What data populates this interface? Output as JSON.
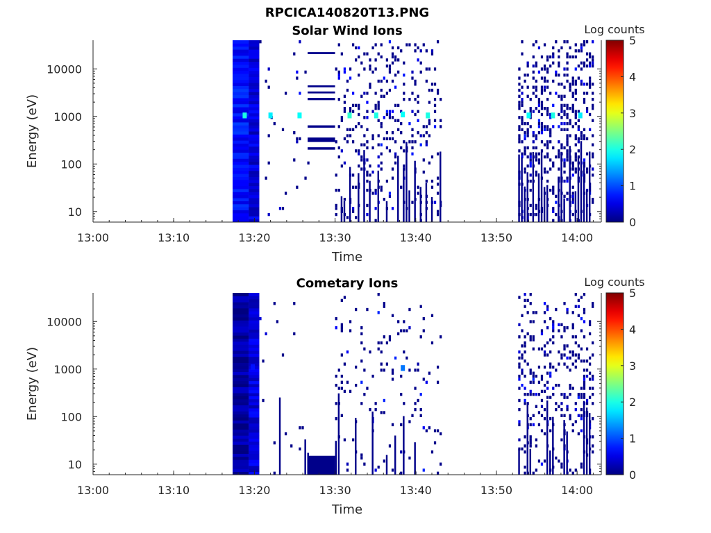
{
  "figure_title": "RPCICA140820T13.PNG",
  "chart_data": [
    {
      "type": "heatmap",
      "title": "Solar Wind Ions",
      "xlabel": "Time",
      "ylabel": "Energy (eV)",
      "x_tick_labels": [
        "13:00",
        "13:10",
        "13:20",
        "13:30",
        "13:40",
        "13:50",
        "14:00"
      ],
      "x_range_minutes": [
        0,
        63
      ],
      "y_tick_labels": [
        "10",
        "100",
        "1000",
        "10000"
      ],
      "y_scale": "log",
      "y_range": [
        6,
        40000
      ],
      "colorbar_label": "Log counts",
      "colorbar_ticks": [
        "0",
        "1",
        "2",
        "3",
        "4",
        "5"
      ],
      "colorbar_range": [
        0,
        5
      ],
      "colormap": "jet",
      "blocks": [
        {
          "t": [
            17.3,
            19.3
          ],
          "e": [
            6,
            40000
          ],
          "level": 0.7
        },
        {
          "t": [
            19.3,
            20.6
          ],
          "e": [
            6,
            40000
          ],
          "level": 0.45
        },
        {
          "t": [
            26.6,
            30.0
          ],
          "e": [
            20500,
            22500
          ],
          "level": 0.05
        },
        {
          "t": [
            26.6,
            30.0
          ],
          "e": [
            4100,
            4500
          ],
          "level": 0.05
        },
        {
          "t": [
            26.6,
            30.0
          ],
          "e": [
            3050,
            3350
          ],
          "level": 0.05
        },
        {
          "t": [
            26.6,
            30.0
          ],
          "e": [
            2200,
            2450
          ],
          "level": 0.05
        },
        {
          "t": [
            26.6,
            30.0
          ],
          "e": [
            580,
            650
          ],
          "level": 0.05
        },
        {
          "t": [
            26.6,
            30.0
          ],
          "e": [
            290,
            360
          ],
          "level": 0.05
        },
        {
          "t": [
            26.6,
            30.0
          ],
          "e": [
            200,
            225
          ],
          "level": 0.05
        }
      ],
      "peaks": [
        {
          "t": 18.8,
          "e": 1050,
          "level": 2.0
        },
        {
          "t": 22.0,
          "e": 1050,
          "level": 1.8
        },
        {
          "t": 25.6,
          "e": 1050,
          "level": 1.9
        },
        {
          "t": 31.8,
          "e": 1050,
          "level": 2.1
        },
        {
          "t": 35.1,
          "e": 1050,
          "level": 2.0
        },
        {
          "t": 38.4,
          "e": 1100,
          "level": 1.9
        },
        {
          "t": 41.5,
          "e": 1050,
          "level": 2.0
        },
        {
          "t": 54.0,
          "e": 1050,
          "level": 1.9
        },
        {
          "t": 57.0,
          "e": 1050,
          "level": 2.0
        },
        {
          "t": 60.4,
          "e": 1050,
          "level": 1.8
        }
      ],
      "sparse_regions": [
        {
          "t": [
            20.6,
            26.6
          ],
          "density": 0.025
        },
        {
          "t": [
            30.0,
            43.0
          ],
          "density": 0.16
        },
        {
          "t": [
            52.7,
            62.0
          ],
          "density": 0.3
        }
      ]
    },
    {
      "type": "heatmap",
      "title": "Cometary Ions",
      "xlabel": "Time",
      "ylabel": "Energy (eV)",
      "x_tick_labels": [
        "13:00",
        "13:10",
        "13:20",
        "13:30",
        "13:40",
        "13:50",
        "14:00"
      ],
      "x_range_minutes": [
        0,
        63
      ],
      "y_tick_labels": [
        "10",
        "100",
        "1000",
        "10000"
      ],
      "y_scale": "log",
      "y_range": [
        6,
        40000
      ],
      "colorbar_label": "Log counts",
      "colorbar_ticks": [
        "0",
        "1",
        "2",
        "3",
        "4",
        "5"
      ],
      "colorbar_range": [
        0,
        5
      ],
      "colormap": "jet",
      "blocks": [
        {
          "t": [
            17.3,
            19.3
          ],
          "e": [
            6,
            40000
          ],
          "level": 0.15
        },
        {
          "t": [
            19.3,
            20.6
          ],
          "e": [
            6,
            40000
          ],
          "level": 0.45
        },
        {
          "t": [
            26.6,
            30.0
          ],
          "e": [
            6,
            15
          ],
          "level": 0.05
        }
      ],
      "peaks": [
        {
          "t": 19.8,
          "e": 1100,
          "level": 0.7
        },
        {
          "t": 38.4,
          "e": 1050,
          "level": 1.2
        }
      ],
      "sparse_regions": [
        {
          "t": [
            20.6,
            26.6
          ],
          "density": 0.015
        },
        {
          "t": [
            30.0,
            43.0
          ],
          "density": 0.06
        },
        {
          "t": [
            52.7,
            62.0
          ],
          "density": 0.2
        }
      ]
    }
  ]
}
